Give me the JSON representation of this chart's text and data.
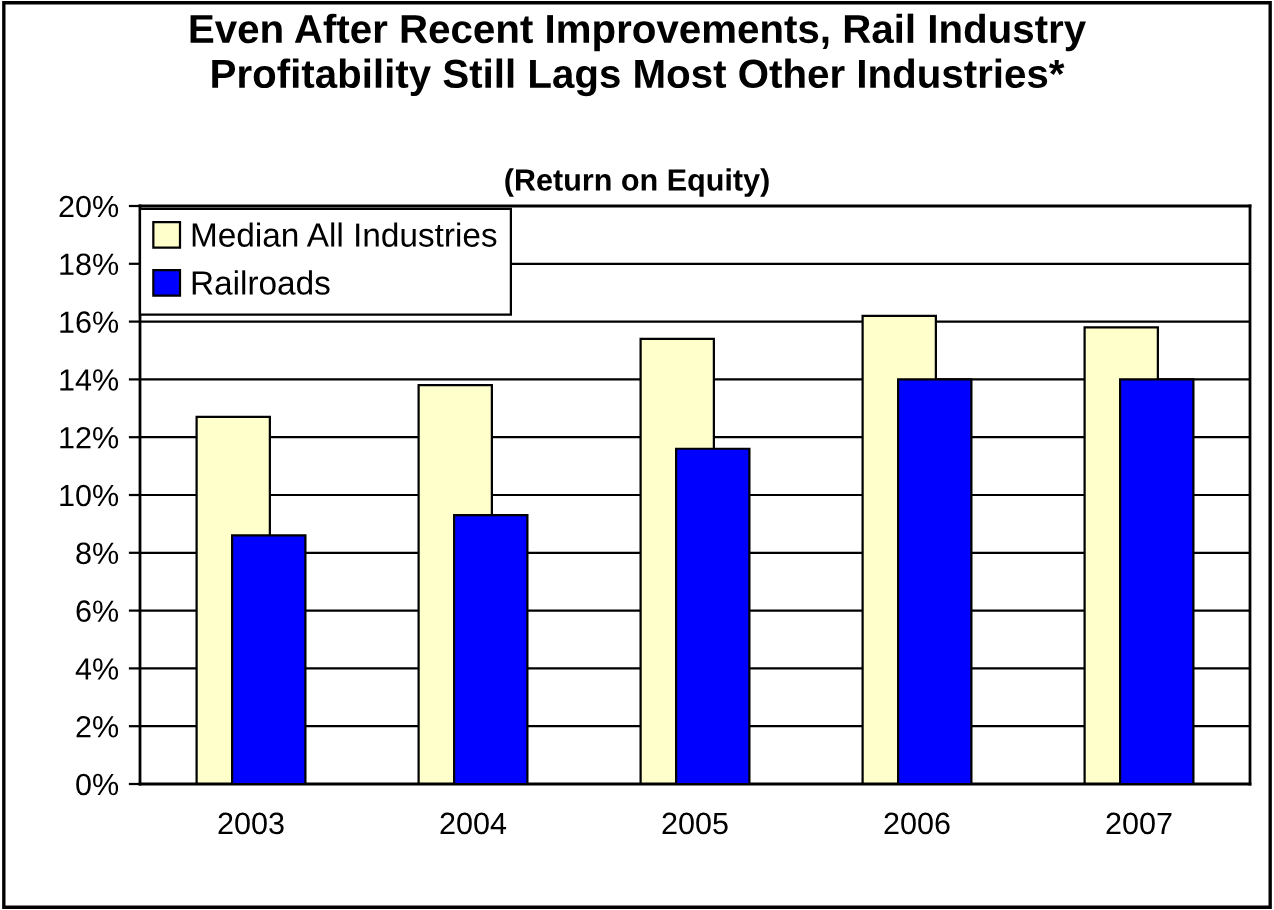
{
  "chart_data": {
    "type": "bar",
    "title": "Even After Recent Improvements, Rail Industry\nProfitability Still Lags Most Other Industries*",
    "subtitle": "(Return on Equity)",
    "categories": [
      "2003",
      "2004",
      "2005",
      "2006",
      "2007"
    ],
    "series": [
      {
        "name": "Median All Industries",
        "color": "#ffffcc",
        "values": [
          12.7,
          13.8,
          15.4,
          16.2,
          15.8
        ]
      },
      {
        "name": "Railroads",
        "color": "#0000ff",
        "values": [
          8.6,
          9.3,
          11.6,
          14.0,
          14.0
        ]
      }
    ],
    "ylim": [
      0,
      20
    ],
    "yticks": [
      {
        "value": 0,
        "label": "0%"
      },
      {
        "value": 2,
        "label": "2%"
      },
      {
        "value": 4,
        "label": "4%"
      },
      {
        "value": 6,
        "label": "6%"
      },
      {
        "value": 8,
        "label": "8%"
      },
      {
        "value": 10,
        "label": "10%"
      },
      {
        "value": 12,
        "label": "12%"
      },
      {
        "value": 14,
        "label": "14%"
      },
      {
        "value": 16,
        "label": "16%"
      },
      {
        "value": 18,
        "label": "18%"
      },
      {
        "value": 20,
        "label": "20%"
      }
    ],
    "grid": "y",
    "legend": "top left"
  }
}
